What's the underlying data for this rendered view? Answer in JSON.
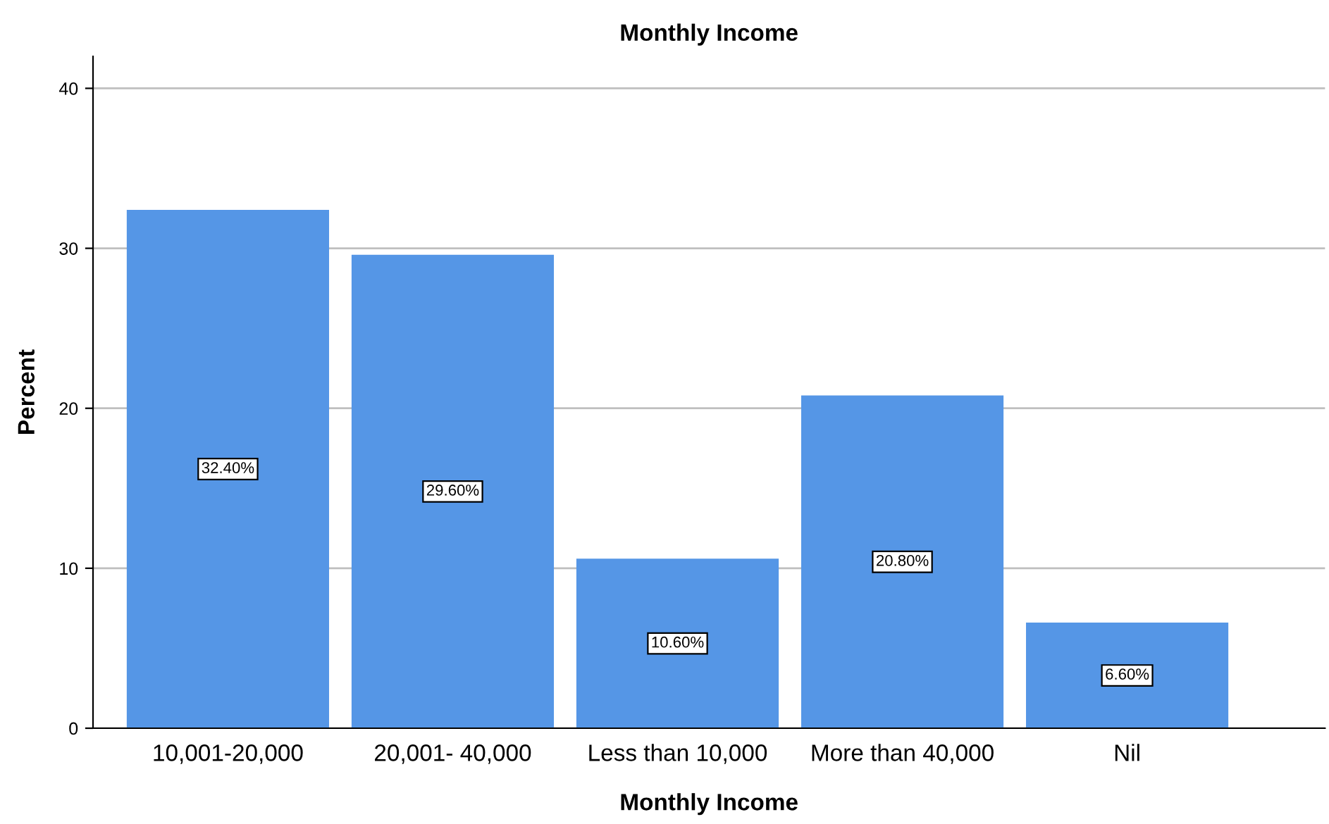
{
  "chart_data": {
    "type": "bar",
    "title": "Monthly Income",
    "xlabel": "Monthly Income",
    "ylabel": "Percent",
    "categories": [
      "10,001-20,000",
      "20,001- 40,000",
      "Less than 10,000",
      "More than 40,000",
      "Nil"
    ],
    "values": [
      32.4,
      29.6,
      10.6,
      20.8,
      6.6
    ],
    "value_labels": [
      "32.40%",
      "29.60%",
      "10.60%",
      "20.80%",
      "6.60%"
    ],
    "color": "#5596e6",
    "ylim": [
      0,
      42
    ],
    "yticks": [
      0,
      10,
      20,
      30,
      40
    ],
    "grid": "y"
  }
}
